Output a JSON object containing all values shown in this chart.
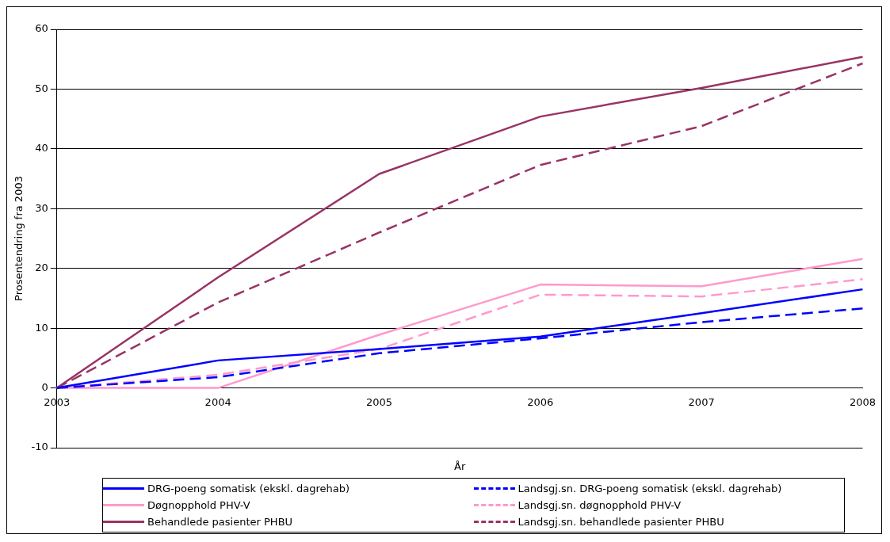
{
  "chart_data": {
    "type": "line",
    "xlabel": "År",
    "ylabel": "Prosentendring fra 2003",
    "categories": [
      "2003",
      "2004",
      "2005",
      "2006",
      "2007",
      "2008"
    ],
    "ylim": [
      -10,
      60
    ],
    "yticks": [
      -10,
      0,
      10,
      20,
      30,
      40,
      50,
      60
    ],
    "grid": "y",
    "legend": "bottom",
    "marker": "none",
    "series": [
      {
        "name": "DRG-poeng somatisk (ekskl. dagrehab)",
        "color": "#0000ff",
        "line_style": "solid",
        "values": [
          0,
          4.6,
          6.5,
          8.6,
          12.5,
          16.5
        ]
      },
      {
        "name": "Landsgj.sn. DRG-poeng somatisk (ekskl. dagrehab)",
        "color": "#0000ff",
        "line_style": "dashed",
        "values": [
          0,
          1.8,
          5.8,
          8.3,
          11,
          13.3
        ]
      },
      {
        "name": "Døgnopphold PHV-V",
        "color": "#ff99cc",
        "line_style": "solid",
        "values": [
          0,
          0,
          8.9,
          17.3,
          17,
          21.6
        ]
      },
      {
        "name": "Landsgj.sn. døgnopphold PHV-V",
        "color": "#ff99cc",
        "line_style": "dashed",
        "values": [
          0,
          2.2,
          6.5,
          15.6,
          15.3,
          18.2
        ]
      },
      {
        "name": "Behandlede pasienter PHBU",
        "color": "#993366",
        "line_style": "solid",
        "values": [
          0,
          18.5,
          35.8,
          45.4,
          50.2,
          55.4
        ]
      },
      {
        "name": "Landsgj.sn. behandlede pasienter PHBU",
        "color": "#993366",
        "line_style": "dashed",
        "values": [
          0,
          14.3,
          26,
          37.3,
          43.8,
          54.3
        ]
      }
    ]
  }
}
